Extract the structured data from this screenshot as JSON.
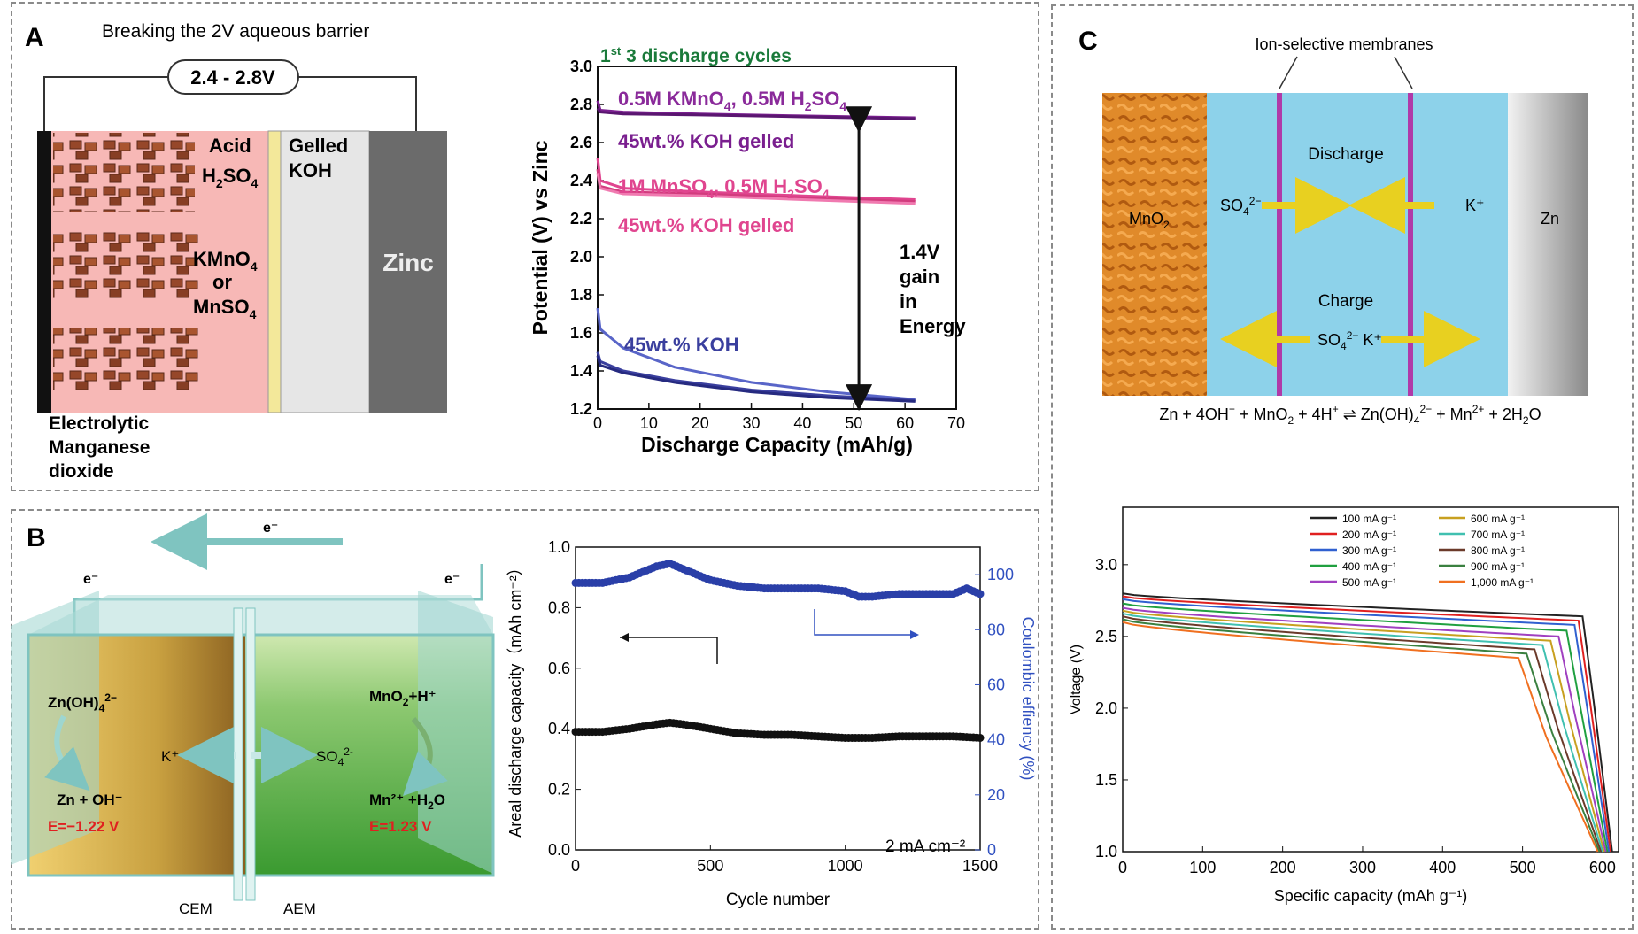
{
  "panels": {
    "A": {
      "letter": "A",
      "title": "Breaking the 2V aqueous barrier",
      "voltage_label": "2.4 - 2.8V",
      "acid_label": [
        "Acid",
        "H",
        "2",
        "SO",
        "4"
      ],
      "gelled_label": [
        "Gelled",
        "KOH"
      ],
      "permanganate_label": [
        "KMnO",
        "4",
        "or",
        "MnSO",
        "4"
      ],
      "zinc_label": "Zinc",
      "emd_label": [
        "Electrolytic",
        "Manganese",
        "dioxide"
      ]
    },
    "B": {
      "letter": "B",
      "electron_labels": [
        "e⁻",
        "e⁻",
        "e⁻"
      ],
      "left_species": [
        "Zn(OH)",
        "4",
        "2−",
        "Zn + OH⁻"
      ],
      "left_potential": "E=−1.22 V",
      "right_species": [
        "MnO",
        "2",
        "+H⁺",
        "Mn²⁺ +H",
        "2",
        "O"
      ],
      "right_potential": "E=1.23 V",
      "ion_k": "K⁺",
      "ion_so4": [
        "SO",
        "4",
        "2-"
      ],
      "membrane_labels": [
        "CEM",
        "AEM"
      ]
    },
    "C": {
      "letter": "C",
      "membranes_label": "Ion-selective membranes",
      "mno2_label": [
        "MnO",
        "2"
      ],
      "zn_label": "Zn",
      "discharge_label": "Discharge",
      "charge_label": "Charge",
      "so4_left": [
        "SO",
        "4",
        "2−"
      ],
      "k_right": "K⁺",
      "charge_ions": [
        "SO",
        "4",
        "2−",
        " K⁺"
      ],
      "equation": [
        "Zn + 4OH",
        "−",
        " + MnO",
        "2",
        " + 4H",
        "+",
        " ⇌ Zn(OH)",
        "4",
        "2−",
        " + Mn",
        "2+",
        " + 2H",
        "2",
        "O"
      ]
    }
  },
  "chart_data": [
    {
      "id": "A",
      "type": "line",
      "title": [
        "1",
        "st",
        " 3 discharge cycles"
      ],
      "xlabel": "Discharge Capacity (mAh/g)",
      "ylabel": "Potential (V) vs Zinc",
      "xlim": [
        0,
        70
      ],
      "ylim": [
        1.2,
        3.0
      ],
      "xticks": [
        0,
        10,
        20,
        30,
        40,
        50,
        60,
        70
      ],
      "yticks": [
        1.2,
        1.4,
        1.6,
        1.8,
        2.0,
        2.2,
        2.4,
        2.6,
        2.8,
        3.0
      ],
      "series": [
        {
          "color": "#7a1f8f",
          "x": [
            0,
            0.5,
            5,
            20,
            40,
            62
          ],
          "y": [
            2.82,
            2.77,
            2.76,
            2.75,
            2.74,
            2.73
          ]
        },
        {
          "color": "#5a1670",
          "x": [
            0,
            0.5,
            5,
            20,
            40,
            62
          ],
          "y": [
            2.78,
            2.76,
            2.75,
            2.745,
            2.735,
            2.725
          ]
        },
        {
          "color": "#e0458f",
          "x": [
            0,
            0.5,
            5,
            20,
            40,
            62
          ],
          "y": [
            2.52,
            2.4,
            2.36,
            2.34,
            2.32,
            2.3
          ]
        },
        {
          "color": "#d23c7e",
          "x": [
            0,
            0.5,
            5,
            20,
            40,
            62
          ],
          "y": [
            2.46,
            2.37,
            2.34,
            2.33,
            2.31,
            2.29
          ]
        },
        {
          "color": "#f07ab0",
          "x": [
            0,
            0.5,
            5,
            20,
            40,
            62
          ],
          "y": [
            2.44,
            2.36,
            2.33,
            2.32,
            2.3,
            2.28
          ]
        },
        {
          "color": "#5965c8",
          "x": [
            0,
            0.5,
            5,
            15,
            30,
            45,
            62
          ],
          "y": [
            1.73,
            1.62,
            1.52,
            1.42,
            1.34,
            1.29,
            1.25
          ]
        },
        {
          "color": "#3a3f9e",
          "x": [
            0,
            0.5,
            5,
            15,
            30,
            45,
            62
          ],
          "y": [
            1.5,
            1.45,
            1.4,
            1.35,
            1.3,
            1.27,
            1.245
          ]
        },
        {
          "color": "#262a80",
          "x": [
            0,
            0.5,
            5,
            15,
            30,
            45,
            62
          ],
          "y": [
            1.48,
            1.43,
            1.39,
            1.34,
            1.29,
            1.26,
            1.24
          ]
        }
      ],
      "annotations": {
        "kmno4": [
          "0.5M KMnO",
          "4",
          ", 0.5M H",
          "2",
          "SO",
          "4"
        ],
        "gelled1": "45wt.% KOH gelled",
        "mnso4": [
          "1M MnSO",
          "4",
          ", 0.5M H",
          "2",
          "SO",
          "4"
        ],
        "gelled2": "45wt.% KOH gelled",
        "koh": "45wt.% KOH",
        "gain": [
          "1.4V",
          "gain",
          "in",
          "Energy"
        ]
      },
      "gain_arrow": {
        "x": 51,
        "y_top": 2.72,
        "y_bottom": 1.26
      }
    },
    {
      "id": "B",
      "type": "scatter",
      "xlabel": "Cycle number",
      "ylabel": "Areal discharge capacity（mAh cm⁻²）",
      "ylabel2": "Coulombic effiency (%)",
      "xlim": [
        0,
        1500
      ],
      "ylim": [
        0.0,
        1.0
      ],
      "y2lim": [
        0,
        110
      ],
      "xticks": [
        0,
        500,
        1000,
        1500
      ],
      "yticks": [
        0.0,
        0.2,
        0.4,
        0.6,
        0.8,
        1.0
      ],
      "y2ticks": [
        0,
        20,
        40,
        60,
        80,
        100
      ],
      "annotation": "2 mA cm⁻²",
      "capacity": {
        "color": "#111111",
        "x": [
          0,
          100,
          200,
          300,
          350,
          400,
          500,
          600,
          700,
          800,
          900,
          1000,
          1100,
          1200,
          1300,
          1400,
          1500
        ],
        "y": [
          0.39,
          0.39,
          0.4,
          0.415,
          0.42,
          0.415,
          0.4,
          0.385,
          0.38,
          0.38,
          0.375,
          0.37,
          0.37,
          0.375,
          0.375,
          0.375,
          0.37
        ]
      },
      "efficiency": {
        "color": "#2a3fa8",
        "x": [
          0,
          100,
          200,
          300,
          350,
          400,
          500,
          600,
          700,
          800,
          900,
          1000,
          1050,
          1100,
          1200,
          1300,
          1400,
          1450,
          1500
        ],
        "y": [
          97,
          97,
          99,
          103,
          104,
          102,
          98,
          96,
          95,
          95,
          95,
          94,
          92,
          92,
          93,
          93,
          93,
          95,
          93
        ]
      }
    },
    {
      "id": "C",
      "type": "line",
      "xlabel": "Specific capacity (mAh g⁻¹)",
      "ylabel": "Voltage (V)",
      "xlim": [
        0,
        620
      ],
      "ylim": [
        1.0,
        3.4
      ],
      "xticks": [
        0,
        100,
        200,
        300,
        400,
        500,
        600
      ],
      "yticks": [
        1.0,
        1.5,
        2.0,
        2.5,
        3.0
      ],
      "legend": [
        "100 mA g⁻¹",
        "200 mA g⁻¹",
        "300 mA g⁻¹",
        "400 mA g⁻¹",
        "500 mA g⁻¹",
        "600 mA g⁻¹",
        "700 mA g⁻¹",
        "800 mA g⁻¹",
        "900 mA g⁻¹",
        "1,000 mA g⁻¹"
      ],
      "series": [
        {
          "name": "100 mA g⁻¹",
          "color": "#222222",
          "v0": 2.8,
          "vp": 2.64,
          "cap": 575,
          "end": 612
        },
        {
          "name": "200 mA g⁻¹",
          "color": "#e02020",
          "v0": 2.78,
          "vp": 2.61,
          "cap": 570,
          "end": 610
        },
        {
          "name": "300 mA g⁻¹",
          "color": "#3060d0",
          "v0": 2.76,
          "vp": 2.58,
          "cap": 565,
          "end": 608
        },
        {
          "name": "400 mA g⁻¹",
          "color": "#20a040",
          "v0": 2.73,
          "vp": 2.54,
          "cap": 555,
          "end": 606
        },
        {
          "name": "500 mA g⁻¹",
          "color": "#a040c0",
          "v0": 2.7,
          "vp": 2.5,
          "cap": 545,
          "end": 604
        },
        {
          "name": "600 mA g⁻¹",
          "color": "#c8a020",
          "v0": 2.68,
          "vp": 2.47,
          "cap": 535,
          "end": 602
        },
        {
          "name": "700 mA g⁻¹",
          "color": "#40c0b0",
          "v0": 2.66,
          "vp": 2.44,
          "cap": 525,
          "end": 600
        },
        {
          "name": "800 mA g⁻¹",
          "color": "#6b3a2a",
          "v0": 2.64,
          "vp": 2.41,
          "cap": 515,
          "end": 598
        },
        {
          "name": "900 mA g⁻¹",
          "color": "#3a8040",
          "v0": 2.62,
          "vp": 2.38,
          "cap": 505,
          "end": 596
        },
        {
          "name": "1,000 mA g⁻¹",
          "color": "#f07020",
          "v0": 2.6,
          "vp": 2.35,
          "cap": 495,
          "end": 594
        }
      ]
    }
  ]
}
